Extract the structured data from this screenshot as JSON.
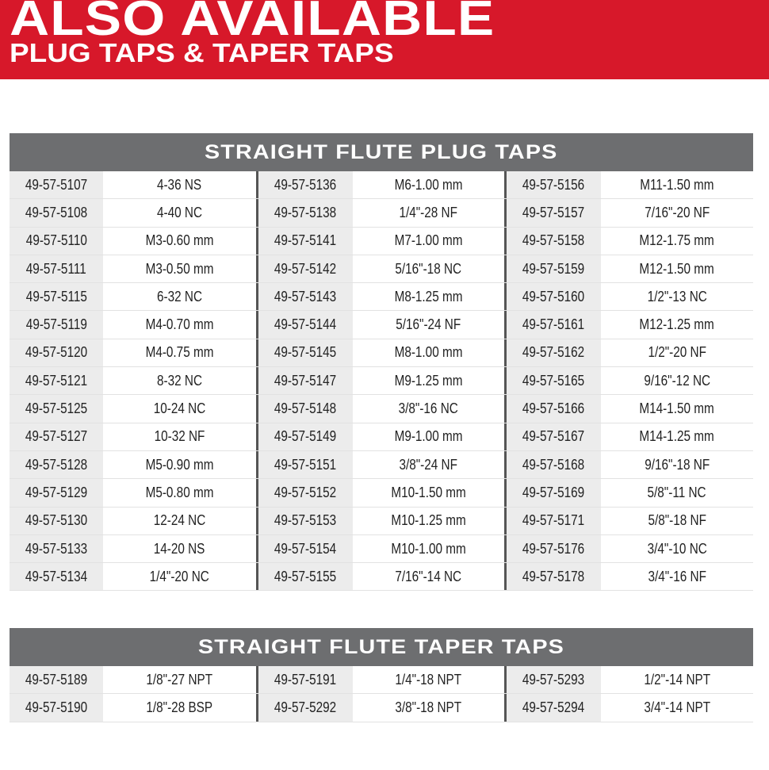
{
  "banner": {
    "title": "ALSO AVAILABLE",
    "subtitle": "PLUG TAPS & TAPER TAPS",
    "color": "#d7182a"
  },
  "tables": [
    {
      "title": "STRAIGHT FLUTE PLUG TAPS",
      "rows": [
        [
          [
            "49-57-5107",
            "4-36 NS"
          ],
          [
            "49-57-5136",
            "M6-1.00 mm"
          ],
          [
            "49-57-5156",
            "M11-1.50 mm"
          ]
        ],
        [
          [
            "49-57-5108",
            "4-40 NC"
          ],
          [
            "49-57-5138",
            "1/4\"-28 NF"
          ],
          [
            "49-57-5157",
            "7/16\"-20 NF"
          ]
        ],
        [
          [
            "49-57-5110",
            "M3-0.60 mm"
          ],
          [
            "49-57-5141",
            "M7-1.00 mm"
          ],
          [
            "49-57-5158",
            "M12-1.75 mm"
          ]
        ],
        [
          [
            "49-57-5111",
            "M3-0.50 mm"
          ],
          [
            "49-57-5142",
            "5/16\"-18 NC"
          ],
          [
            "49-57-5159",
            "M12-1.50 mm"
          ]
        ],
        [
          [
            "49-57-5115",
            "6-32 NC"
          ],
          [
            "49-57-5143",
            "M8-1.25 mm"
          ],
          [
            "49-57-5160",
            "1/2\"-13 NC"
          ]
        ],
        [
          [
            "49-57-5119",
            "M4-0.70 mm"
          ],
          [
            "49-57-5144",
            "5/16\"-24 NF"
          ],
          [
            "49-57-5161",
            "M12-1.25 mm"
          ]
        ],
        [
          [
            "49-57-5120",
            "M4-0.75 mm"
          ],
          [
            "49-57-5145",
            "M8-1.00 mm"
          ],
          [
            "49-57-5162",
            "1/2\"-20 NF"
          ]
        ],
        [
          [
            "49-57-5121",
            "8-32 NC"
          ],
          [
            "49-57-5147",
            "M9-1.25 mm"
          ],
          [
            "49-57-5165",
            "9/16\"-12 NC"
          ]
        ],
        [
          [
            "49-57-5125",
            "10-24 NC"
          ],
          [
            "49-57-5148",
            "3/8\"-16 NC"
          ],
          [
            "49-57-5166",
            "M14-1.50 mm"
          ]
        ],
        [
          [
            "49-57-5127",
            "10-32 NF"
          ],
          [
            "49-57-5149",
            "M9-1.00 mm"
          ],
          [
            "49-57-5167",
            "M14-1.25 mm"
          ]
        ],
        [
          [
            "49-57-5128",
            "M5-0.90 mm"
          ],
          [
            "49-57-5151",
            "3/8\"-24 NF"
          ],
          [
            "49-57-5168",
            "9/16\"-18 NF"
          ]
        ],
        [
          [
            "49-57-5129",
            "M5-0.80 mm"
          ],
          [
            "49-57-5152",
            "M10-1.50 mm"
          ],
          [
            "49-57-5169",
            "5/8\"-11 NC"
          ]
        ],
        [
          [
            "49-57-5130",
            "12-24 NC"
          ],
          [
            "49-57-5153",
            "M10-1.25 mm"
          ],
          [
            "49-57-5171",
            "5/8\"-18 NF"
          ]
        ],
        [
          [
            "49-57-5133",
            "14-20 NS"
          ],
          [
            "49-57-5154",
            "M10-1.00 mm"
          ],
          [
            "49-57-5176",
            "3/4\"-10 NC"
          ]
        ],
        [
          [
            "49-57-5134",
            "1/4\"-20 NC"
          ],
          [
            "49-57-5155",
            "7/16\"-14 NC"
          ],
          [
            "49-57-5178",
            "3/4\"-16 NF"
          ]
        ]
      ]
    },
    {
      "title": "STRAIGHT FLUTE TAPER TAPS",
      "rows": [
        [
          [
            "49-57-5189",
            "1/8\"-27 NPT"
          ],
          [
            "49-57-5191",
            "1/4\"-18 NPT"
          ],
          [
            "49-57-5293",
            "1/2\"-14 NPT"
          ]
        ],
        [
          [
            "49-57-5190",
            "1/8\"-28 BSP"
          ],
          [
            "49-57-5292",
            "3/8\"-18 NPT"
          ],
          [
            "49-57-5294",
            "3/4\"-14 NPT"
          ]
        ]
      ]
    }
  ]
}
